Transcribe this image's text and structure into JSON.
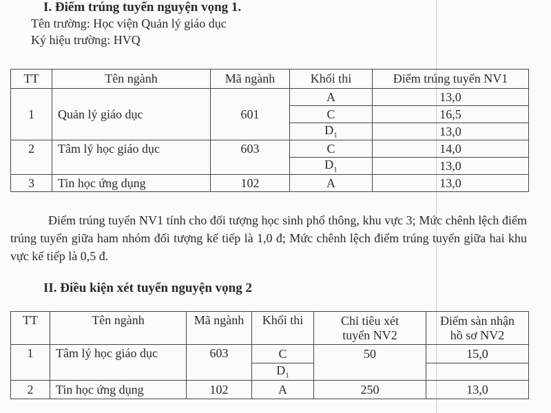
{
  "section1": {
    "title": "I. Điểm trúng tuyển nguyện vọng 1.",
    "school_name": "Tên trường: Học viện Quản lý giáo dục",
    "school_code": "Ký hiệu trường: HVQ",
    "headers": [
      "TT",
      "Tên ngành",
      "Mã ngành",
      "Khối thi",
      "Điểm trúng tuyển NV1"
    ],
    "rows": [
      {
        "tt": "1",
        "name": "Quản lý giáo dục",
        "code": "601",
        "blocks": [
          {
            "block": "A",
            "score": "13,0"
          },
          {
            "block": "C",
            "score": "16,5"
          },
          {
            "block": "D",
            "sub": "1",
            "score": "13,0"
          }
        ]
      },
      {
        "tt": "2",
        "name": "Tâm lý học giáo dục",
        "code": "603",
        "blocks": [
          {
            "block": "C",
            "score": "14,0"
          },
          {
            "block": "D",
            "sub": "1",
            "score": "13,0"
          }
        ]
      },
      {
        "tt": "3",
        "name": "Tin học ứng dụng",
        "code": "102",
        "blocks": [
          {
            "block": "A",
            "score": "13,0"
          }
        ]
      }
    ],
    "note": "Điểm trúng tuyển NV1 tính cho đối tượng học sinh phổ thông, khu vực 3; Mức chênh lệch điểm trúng tuyển giữa ham nhóm đối tượng kế tiếp là 1,0 đ; Mức chênh lệch điểm trúng tuyển giữa hai khu vực kế tiếp là 0,5 đ."
  },
  "section2": {
    "title": "II. Điều kiện xét tuyển nguyện vọng 2",
    "headers": [
      "TT",
      "Tên ngành",
      "Mã ngành",
      "Khối thi",
      "Chỉ tiêu xét tuyển NV2",
      "Điểm sàn nhận hồ sơ NV2"
    ],
    "rows": [
      {
        "tt": "1",
        "name": "Tâm lý học giáo dục",
        "code": "603",
        "blocks": [
          {
            "block": "C"
          },
          {
            "block": "D",
            "sub": "1"
          }
        ],
        "quota": "50",
        "floor": "15,0"
      },
      {
        "tt": "2",
        "name": "Tin học ứng dụng",
        "code": "102",
        "blocks": [
          {
            "block": "A"
          }
        ],
        "quota": "250",
        "floor": "13,0"
      }
    ]
  }
}
